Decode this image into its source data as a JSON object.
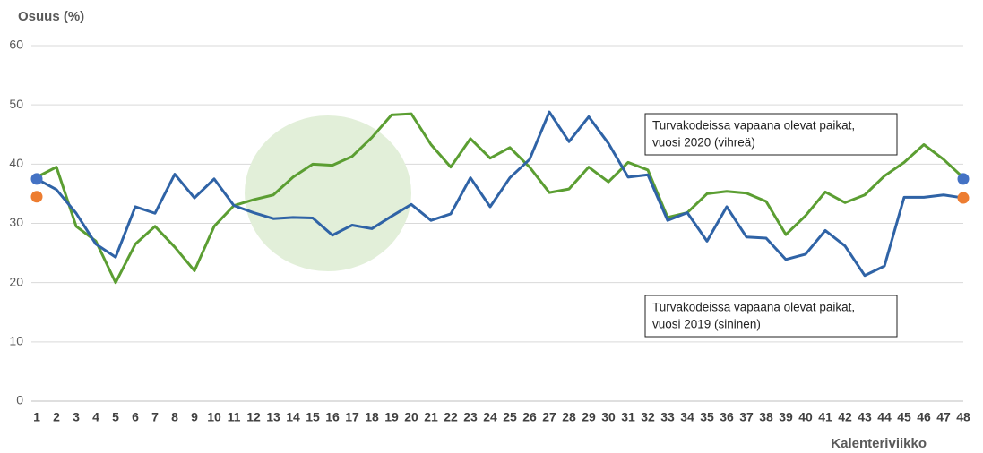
{
  "chart_data": {
    "type": "line",
    "y_label": "Osuus (%)",
    "x_label": "Kalenteriviikko",
    "x": [
      1,
      2,
      3,
      4,
      5,
      6,
      7,
      8,
      9,
      10,
      11,
      12,
      13,
      14,
      15,
      16,
      17,
      18,
      19,
      20,
      21,
      22,
      23,
      24,
      25,
      26,
      27,
      28,
      29,
      30,
      31,
      32,
      33,
      34,
      35,
      36,
      37,
      38,
      39,
      40,
      41,
      42,
      43,
      44,
      45,
      46,
      47,
      48
    ],
    "xlim": [
      1,
      48
    ],
    "xticks": [
      1,
      2,
      3,
      4,
      5,
      6,
      7,
      8,
      9,
      10,
      11,
      12,
      13,
      14,
      15,
      16,
      17,
      18,
      19,
      20,
      21,
      22,
      23,
      24,
      25,
      26,
      27,
      28,
      29,
      30,
      31,
      32,
      33,
      34,
      35,
      36,
      37,
      38,
      39,
      40,
      41,
      42,
      43,
      44,
      45,
      46,
      47,
      48
    ],
    "ylim": [
      0,
      60
    ],
    "yticks": [
      0,
      10,
      20,
      30,
      40,
      50,
      60
    ],
    "grid": true,
    "series": [
      {
        "color": "#5b9e32",
        "values": [
          37.8,
          39.5,
          29.5,
          27,
          20,
          26.5,
          29.5,
          26,
          22,
          29.5,
          33,
          34,
          34.8,
          37.8,
          40,
          39.8,
          41.3,
          44.5,
          48.3,
          48.5,
          43.3,
          39.5,
          44.3,
          41,
          42.8,
          39.5,
          35.2,
          35.8,
          39.5,
          37,
          40.3,
          39,
          31,
          31.8,
          35,
          35.4,
          35.1,
          33.7,
          28.1,
          31.3,
          35.3,
          33.5,
          34.8,
          38,
          40.3,
          43.3,
          40.8,
          37.7
        ]
      },
      {
        "color": "#2f63a6",
        "values": [
          37.5,
          35.7,
          31.7,
          26.5,
          24.3,
          32.8,
          31.7,
          38.3,
          34.3,
          37.5,
          33,
          31.8,
          30.8,
          31,
          30.9,
          28,
          29.7,
          29.1,
          31.2,
          33.2,
          30.5,
          31.6,
          37.7,
          32.8,
          37.7,
          40.8,
          48.8,
          43.8,
          48,
          43.5,
          37.8,
          38.2,
          30.5,
          31.8,
          27,
          32.8,
          27.7,
          27.5,
          23.9,
          24.8,
          28.8,
          26.2,
          21.2,
          22.8,
          34.4,
          34.4,
          34.8,
          34.3
        ]
      }
    ],
    "end_markers": [
      {
        "x": 1,
        "value": 37.5,
        "color": "#4472c4"
      },
      {
        "x": 1,
        "value": 34.5,
        "color": "#ed7d31"
      },
      {
        "x": 48,
        "value": 37.5,
        "color": "#4472c4"
      },
      {
        "x": 48,
        "value": 34.3,
        "color": "#ed7d31"
      }
    ],
    "annotations": [
      {
        "lines": [
          "Turvakodeissa vapaana olevat paikat,",
          "vuosi 2020 (vihreä)"
        ]
      },
      {
        "lines": [
          "Turvakodeissa vapaana olevat paikat,",
          "vuosi 2019 (sininen)"
        ]
      }
    ]
  }
}
